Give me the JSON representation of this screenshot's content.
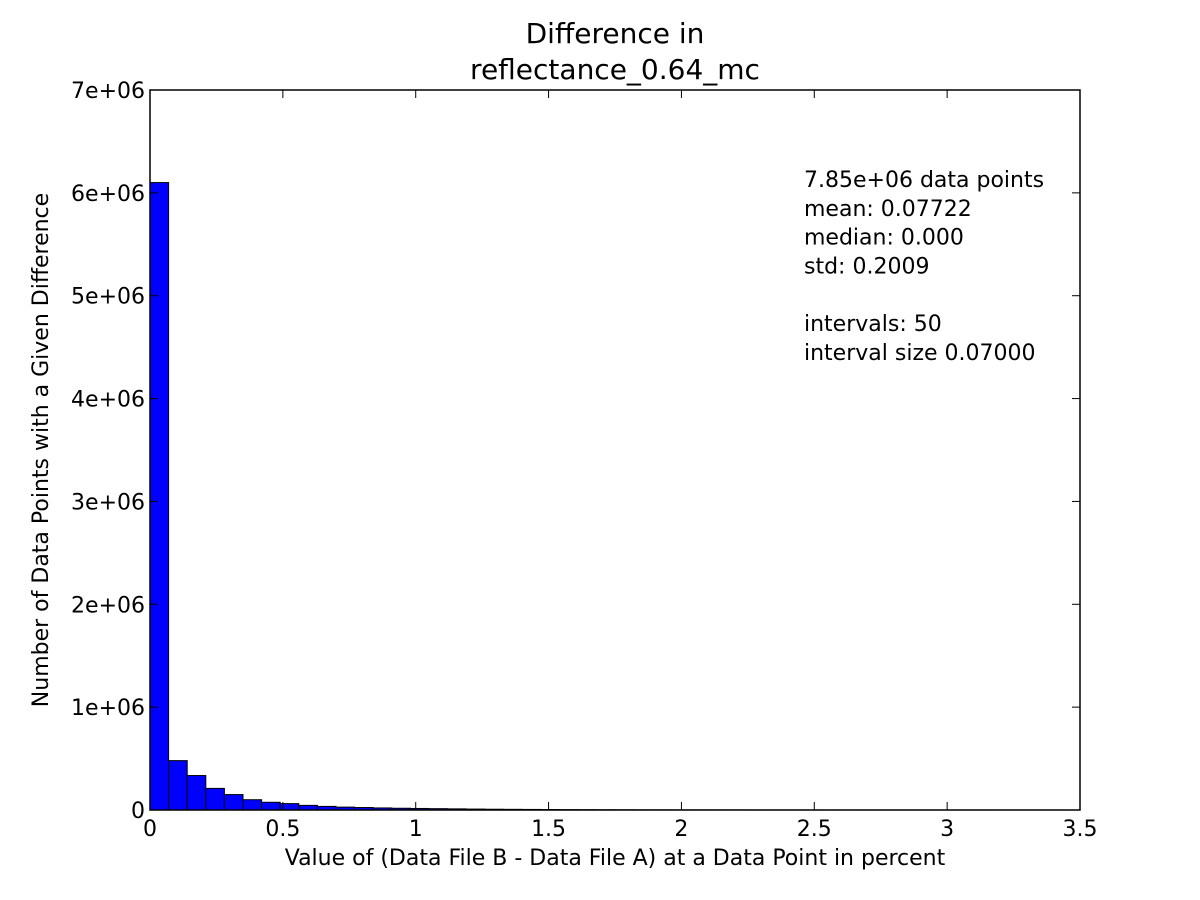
{
  "chart_data": {
    "type": "bar",
    "title_lines": [
      "Difference in",
      "reflectance_0.64_mc"
    ],
    "xlabel": "Value of (Data File B - Data File A) at a Data Point in percent",
    "ylabel": "Number of Data Points with a Given Difference",
    "xlim": [
      0,
      3.5
    ],
    "ylim": [
      0,
      7000000
    ],
    "x_ticks": [
      0,
      0.5,
      1,
      1.5,
      2,
      2.5,
      3,
      3.5
    ],
    "x_tick_labels": [
      "0",
      "0.5",
      "1",
      "1.5",
      "2",
      "2.5",
      "3",
      "3.5"
    ],
    "y_ticks": [
      0,
      1000000,
      2000000,
      3000000,
      4000000,
      5000000,
      6000000,
      7000000
    ],
    "y_tick_labels": [
      "0",
      "1e+06",
      "2e+06",
      "3e+06",
      "4e+06",
      "5e+06",
      "6e+06",
      "7e+06"
    ],
    "bin_width": 0.07,
    "bin_starts": [
      0,
      0.07,
      0.14,
      0.21,
      0.28,
      0.35,
      0.42,
      0.49,
      0.56,
      0.63,
      0.7,
      0.77,
      0.84,
      0.91,
      0.98,
      1.05,
      1.12,
      1.19,
      1.26,
      1.33,
      1.4,
      1.47,
      1.54,
      1.61,
      1.68,
      1.75,
      1.82,
      1.89,
      1.96,
      2.03,
      2.1,
      2.17,
      2.24,
      2.31,
      2.38,
      2.45,
      2.52,
      2.59,
      2.66,
      2.73,
      2.8,
      2.87,
      2.94,
      3.01,
      3.08,
      3.15,
      3.22,
      3.29,
      3.36,
      3.43
    ],
    "values": [
      6100000,
      480000,
      335000,
      210000,
      150000,
      100000,
      75000,
      62000,
      45000,
      35000,
      28000,
      24000,
      20000,
      17000,
      15000,
      13000,
      11000,
      9000,
      7500,
      6500,
      5500,
      4500,
      3500,
      2800,
      2200,
      1800,
      1500,
      1200,
      1000,
      850,
      700,
      600,
      500,
      420,
      350,
      300,
      260,
      220,
      190,
      160,
      140,
      120,
      100,
      90,
      80,
      70,
      60,
      50,
      40,
      35
    ],
    "bar_color": "#0000ff",
    "bar_edge_color": "#000000",
    "grid": false,
    "stats_lines": [
      "7.85e+06 data points",
      "mean: 0.07722",
      "median: 0.000",
      "std: 0.2009",
      "",
      "intervals: 50",
      "interval size 0.07000"
    ]
  }
}
